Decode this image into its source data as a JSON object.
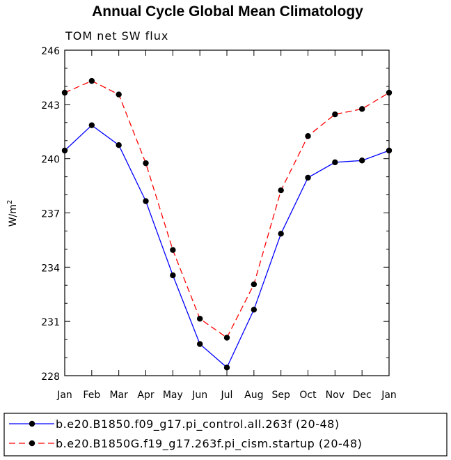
{
  "chart_data": {
    "type": "line",
    "title": "Annual Cycle Global Mean Climatology",
    "subtitle": "TOM net SW flux",
    "ylabel": "W/m",
    "ylabel_sup": "2",
    "xlabel": "",
    "categories": [
      "Jan",
      "Feb",
      "Mar",
      "Apr",
      "May",
      "Jun",
      "Jul",
      "Aug",
      "Sep",
      "Oct",
      "Nov",
      "Dec",
      "Jan"
    ],
    "ylim": [
      228,
      246
    ],
    "yticks": [
      228,
      231,
      234,
      237,
      240,
      243,
      246
    ],
    "series": [
      {
        "name": "b.e20.B1850.f09_g17.pi_control.all.263f (20-48)",
        "color": "#0000ff",
        "dash": "solid",
        "values": [
          240.45,
          241.85,
          240.75,
          237.65,
          233.55,
          229.75,
          228.45,
          231.65,
          235.85,
          238.95,
          239.8,
          239.9,
          240.45
        ]
      },
      {
        "name": "b.e20.B1850G.f19_g17.263f.pi_cism.startup (20-48)",
        "color": "#ff0000",
        "dash": "dashed",
        "values": [
          243.65,
          244.3,
          243.55,
          239.75,
          234.95,
          231.15,
          230.1,
          233.05,
          238.25,
          241.25,
          242.45,
          242.75,
          243.65
        ]
      }
    ],
    "legend_position": "bottom"
  }
}
